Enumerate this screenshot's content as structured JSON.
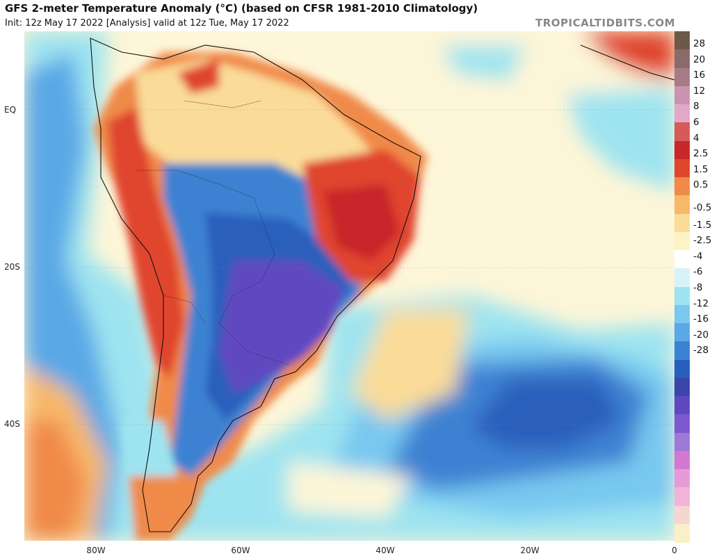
{
  "header": {
    "title": "GFS 2-meter Temperature Anomaly (°C) (based on CFSR 1981-2010 Climatology)",
    "subtitle": "Init: 12z May 17 2022   [Analysis]   valid at 12z Tue, May 17 2022",
    "brand": "TROPICALTIDBITS.COM"
  },
  "map": {
    "lat_labels": [
      "EQ",
      "20S",
      "40S"
    ],
    "lon_labels": [
      "80W",
      "60W",
      "40W",
      "20W",
      "0"
    ]
  },
  "colorbar": {
    "labels": [
      "28",
      "20",
      "16",
      "12",
      "8",
      "6",
      "4",
      "2.5",
      "1.5",
      "0.5",
      "-0.5",
      "-1.5",
      "-2.5",
      "-4",
      "-6",
      "-8",
      "-12",
      "-16",
      "-20",
      "-28"
    ],
    "colors": [
      "#6b5a4a",
      "#8a6a6a",
      "#a67b86",
      "#c994b0",
      "#e3a8c8",
      "#d65a5a",
      "#c8282a",
      "#e0452e",
      "#f08a4a",
      "#f8b86a",
      "#fadc98",
      "#fcf4c4",
      "#ffffff",
      "#d6f4f8",
      "#9ee4f0",
      "#78c8f0",
      "#5aa8e6",
      "#3c82d2",
      "#2a5ebc",
      "#3a46a8",
      "#6048c0",
      "#7e58d0",
      "#a078d8",
      "#d278d0",
      "#e69ad8",
      "#f0b4d8",
      "#f6d6d2",
      "#faf0c8"
    ]
  }
}
